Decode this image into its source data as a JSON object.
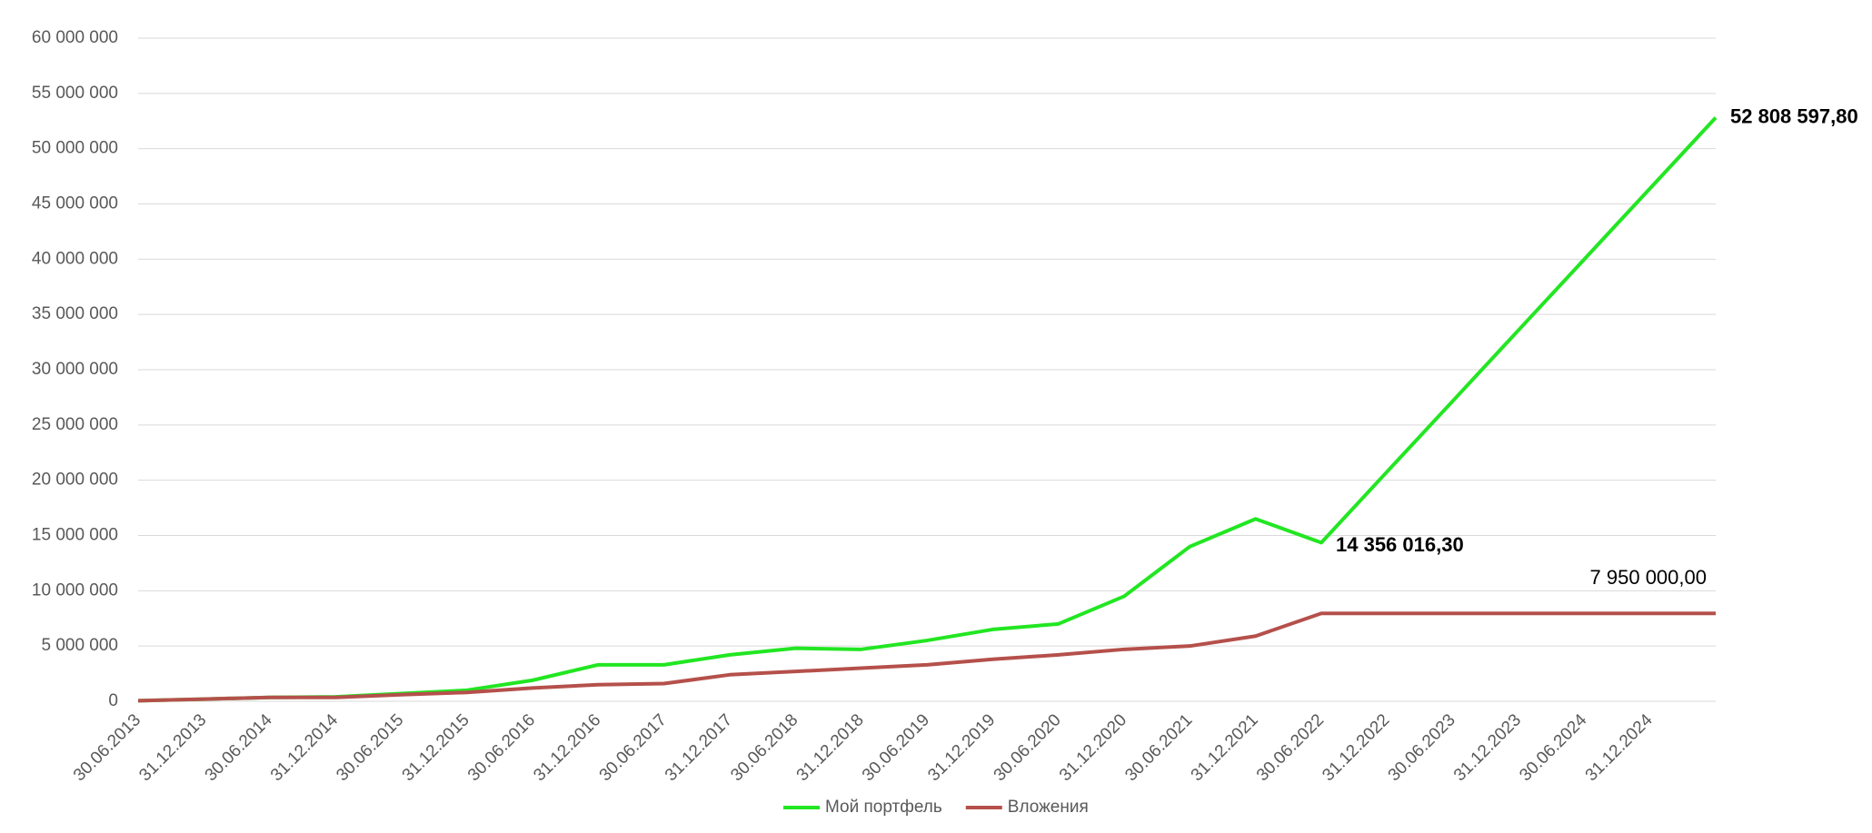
{
  "chart_data": {
    "type": "line",
    "categories": [
      "30.06.2013",
      "31.12.2013",
      "30.06.2014",
      "31.12.2014",
      "30.06.2015",
      "31.12.2015",
      "30.06.2016",
      "31.12.2016",
      "30.06.2017",
      "31.12.2017",
      "30.06.2018",
      "31.12.2018",
      "30.06.2019",
      "31.12.2019",
      "30.06.2020",
      "31.12.2020",
      "30.06.2021",
      "31.12.2021",
      "30.06.2022",
      "31.12.2022",
      "30.06.2023",
      "31.12.2023",
      "30.06.2024",
      "31.12.2024",
      null
    ],
    "series": [
      {
        "name": "Мой портфель",
        "color": "#22e622",
        "values": [
          50000,
          200000,
          350000,
          400000,
          700000,
          1000000,
          1900000,
          3300000,
          3300000,
          4200000,
          4800000,
          4700000,
          5500000,
          6500000,
          7000000,
          9500000,
          14000000,
          16500000,
          14356016.3,
          20770000,
          27170000,
          33580000,
          39990000,
          46400000,
          52808597.8
        ],
        "value_labels": [
          null,
          null,
          null,
          null,
          null,
          null,
          null,
          null,
          null,
          null,
          null,
          null,
          null,
          null,
          null,
          null,
          null,
          null,
          "14 356 016,30",
          null,
          null,
          null,
          null,
          null,
          "52 808 597,80"
        ]
      },
      {
        "name": "Вложения",
        "color": "#b5504b",
        "values": [
          50000,
          200000,
          350000,
          350000,
          600000,
          800000,
          1200000,
          1500000,
          1600000,
          2400000,
          2700000,
          3000000,
          3300000,
          3800000,
          4200000,
          4700000,
          5000000,
          5900000,
          7950000,
          7950000,
          7950000,
          7950000,
          7950000,
          7950000,
          7950000
        ],
        "value_labels": [
          null,
          null,
          null,
          null,
          null,
          null,
          null,
          null,
          null,
          null,
          null,
          null,
          null,
          null,
          null,
          null,
          null,
          null,
          null,
          null,
          null,
          null,
          null,
          null,
          "7 950 000,00"
        ]
      }
    ],
    "ylim": [
      0,
      60000000
    ],
    "yticks": [
      0,
      {
        "value": 5000000,
        "label": "5 000 000"
      },
      {
        "value": 10000000,
        "label": "10 000 000"
      },
      {
        "value": 15000000,
        "label": "15 000 000"
      },
      {
        "value": 20000000,
        "label": "20 000 000"
      },
      {
        "value": 25000000,
        "label": "25 000 000"
      },
      {
        "value": 30000000,
        "label": "30 000 000"
      },
      {
        "value": 35000000,
        "label": "35 000 000"
      },
      {
        "value": 40000000,
        "label": "40 000 000"
      },
      {
        "value": 45000000,
        "label": "45 000 000"
      },
      {
        "value": 50000000,
        "label": "50 000 000"
      },
      {
        "value": 55000000,
        "label": "55 000 000"
      },
      {
        "value": 60000000,
        "label": "60 000 000"
      }
    ],
    "grid": true,
    "legend": "bottom"
  }
}
